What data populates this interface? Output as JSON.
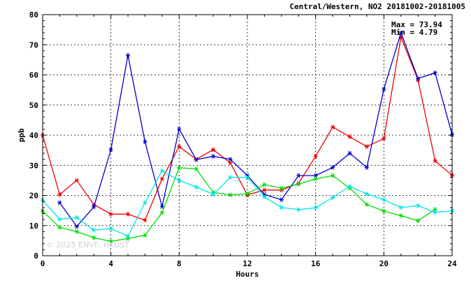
{
  "chart_data": {
    "type": "line",
    "title": "Central/Western, NO2 20181002-20181005",
    "xlabel": "Hours",
    "ylabel": "ppb",
    "xlim": [
      0,
      24
    ],
    "ylim": [
      0,
      80
    ],
    "x_ticks": [
      0,
      4,
      8,
      12,
      16,
      20,
      24
    ],
    "y_ticks": [
      0,
      10,
      20,
      30,
      40,
      50,
      60,
      70,
      80
    ],
    "x_tick_labels": [
      "0",
      "4",
      "8",
      "12",
      "16",
      "20",
      "24"
    ],
    "y_tick_labels": [
      "0",
      "10",
      "20",
      "30",
      "40",
      "50",
      "60",
      "70",
      "80"
    ],
    "grid": true,
    "stats": {
      "max_text": "Max = 73.94",
      "min_text": "Min =  4.79"
    },
    "watermark": "© 2025  ENVF, HKUST",
    "x": [
      0,
      1,
      2,
      3,
      4,
      5,
      6,
      7,
      8,
      9,
      10,
      11,
      12,
      13,
      14,
      15,
      16,
      17,
      18,
      19,
      20,
      21,
      22,
      23,
      24
    ],
    "series": [
      {
        "color": "#ee0000",
        "values": [
          40.0,
          20.3,
          25.0,
          17.0,
          13.8,
          13.8,
          11.8,
          25.5,
          36.2,
          32.0,
          35.2,
          30.8,
          20.2,
          21.8,
          21.8,
          24.0,
          33.0,
          42.7,
          39.5,
          36.2,
          38.9,
          72.6,
          58.3,
          31.5,
          26.7
        ]
      },
      {
        "color": "#0000cc",
        "values": [
          null,
          17.6,
          9.7,
          16.2,
          35.2,
          66.5,
          37.8,
          16.3,
          42.0,
          31.9,
          33.0,
          32.0,
          26.6,
          20.3,
          18.6,
          26.6,
          26.6,
          29.3,
          34.0,
          29.3,
          55.3,
          73.94,
          58.8,
          60.7,
          40.2
        ]
      },
      {
        "color": "#00dd00",
        "values": [
          14.8,
          9.4,
          8.0,
          6.0,
          4.79,
          5.7,
          6.8,
          14.3,
          29.2,
          28.8,
          21.0,
          20.2,
          20.6,
          23.6,
          22.4,
          23.8,
          25.5,
          26.6,
          22.4,
          17.0,
          14.8,
          13.3,
          11.6,
          15.4,
          null
        ]
      },
      {
        "color": "#00e6e6",
        "values": [
          18.4,
          12.1,
          12.7,
          8.5,
          9.0,
          6.5,
          17.6,
          28.2,
          25.0,
          22.8,
          20.4,
          26.0,
          26.0,
          19.5,
          16.0,
          15.3,
          15.9,
          19.3,
          23.0,
          20.5,
          18.6,
          16.0,
          16.6,
          14.4,
          14.9
        ]
      }
    ]
  }
}
